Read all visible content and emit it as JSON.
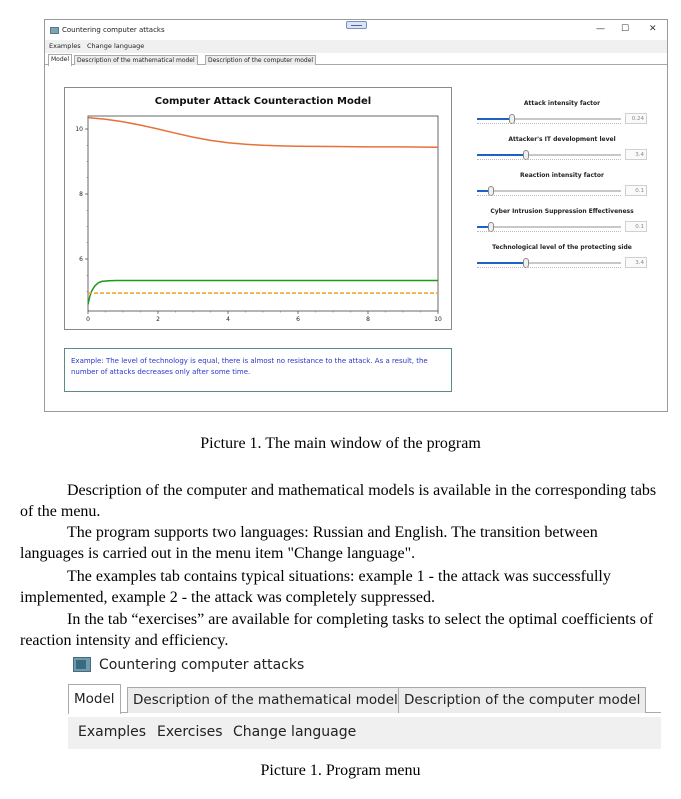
{
  "window1": {
    "title": "Countering computer attacks",
    "controls": {
      "minimize": "—",
      "maximize": "☐",
      "close": "✕"
    },
    "menu": [
      "Examples",
      "Change language"
    ],
    "tabs": [
      "Model",
      "Description of the mathematical model",
      "Description of the computer model"
    ],
    "example_text": "Example: The level of technology is equal, there is almost no resistance to the attack. As a result, the number of attacks decreases only after some time.",
    "sliders": [
      {
        "label": "Attack intensity factor",
        "value": "0.24",
        "fraction": 0.24
      },
      {
        "label": "Attacker's IT development level",
        "value": "3.4",
        "fraction": 0.34
      },
      {
        "label": "Reaction intensity factor",
        "value": "0.1",
        "fraction": 0.1
      },
      {
        "label": "Cyber Intrusion Suppression Effectiveness",
        "value": "0.1",
        "fraction": 0.1
      },
      {
        "label": "Technological level of the protecting side",
        "value": "3.4",
        "fraction": 0.34
      }
    ]
  },
  "chart_data": {
    "type": "line",
    "title": "Computer Attack Counteraction Model",
    "xlabel": "",
    "ylabel": "",
    "xlim": [
      0,
      10
    ],
    "ylim": [
      4.4,
      10.4
    ],
    "x_ticks": [
      0,
      2,
      4,
      6,
      8,
      10
    ],
    "y_ticks": [
      6,
      8,
      10
    ],
    "grid": false,
    "series": [
      {
        "color": "#e8703a",
        "style": "solid",
        "x": [
          0,
          0.5,
          1,
          1.5,
          2,
          2.5,
          3,
          3.5,
          4,
          4.5,
          5,
          5.5,
          6,
          7,
          8,
          9,
          10
        ],
        "y": [
          10.35,
          10.3,
          10.22,
          10.12,
          10.0,
          9.87,
          9.75,
          9.65,
          9.58,
          9.53,
          9.5,
          9.48,
          9.47,
          9.46,
          9.45,
          9.45,
          9.44
        ]
      },
      {
        "color": "#1a9a1a",
        "style": "solid",
        "x": [
          0,
          0.05,
          0.1,
          0.15,
          0.2,
          0.3,
          0.4,
          0.6,
          0.8,
          1,
          2,
          4,
          6,
          8,
          10
        ],
        "y": [
          4.6,
          4.85,
          5.0,
          5.1,
          5.18,
          5.27,
          5.31,
          5.33,
          5.34,
          5.34,
          5.34,
          5.34,
          5.34,
          5.34,
          5.34
        ]
      },
      {
        "color": "#f0a020",
        "style": "dashed",
        "x": [
          0,
          10
        ],
        "y": [
          4.95,
          4.95
        ]
      }
    ]
  },
  "captions": {
    "first": "Picture 1. The main window of the program",
    "second": "Picture 1. Program menu"
  },
  "paragraphs": [
    "Description of the computer and mathematical models is available in the corresponding tabs of the menu.",
    "The program supports two languages: Russian and English. The transition between languages is carried out in the menu item \"Change language\".",
    "The examples tab contains typical situations: example 1 - the attack was successfully implemented, example 2 - the attack was completely suppressed.",
    "In the tab “exercises” are available for completing tasks to select the optimal coefficients of reaction intensity and efficiency."
  ],
  "window2": {
    "title": "Countering computer attacks",
    "tabs": [
      "Model",
      "Description of the mathematical model",
      "Description of the computer model"
    ],
    "menu": [
      "Examples",
      "Exercises",
      "Change language"
    ]
  }
}
